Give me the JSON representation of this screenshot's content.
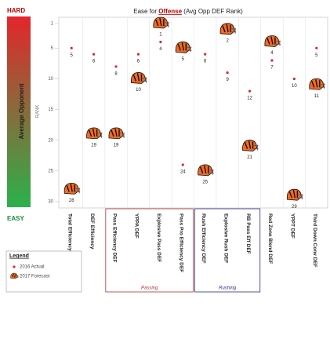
{
  "chart_data": {
    "type": "scatter",
    "title_prefix": "Ease for ",
    "title_emphasis": "Offense",
    "title_suffix": " (Avg Opp DEF Rank)",
    "top_label": "HARD",
    "bottom_label": "EASY",
    "y_label": "Average Opponent",
    "y_sublabel": "RANK",
    "categories": [
      "Total Efficiency",
      "DEF Efficiency",
      "Pass Efficiency DEF",
      "YPPA DEF",
      "Explosive Pass DEF",
      "Pass Pro Efficiency DEF",
      "Rush Efficiency DEF",
      "Explosive Rush DEF",
      "RB Pass Eff DEF",
      "Red Zone Blend DEF",
      "YPPT DEF",
      "Third Down Conv DEF"
    ],
    "groups": [
      {
        "name": "Passing",
        "start": 2,
        "end": 5
      },
      {
        "name": "Rushing",
        "start": 6,
        "end": 8
      }
    ],
    "series": [
      {
        "name": "2016 Actual",
        "color": "#e0262b",
        "marker": "dot",
        "values": [
          5,
          6,
          8,
          6,
          4,
          24,
          6,
          9,
          12,
          7,
          10,
          5
        ]
      },
      {
        "name": "2017 Forecast",
        "color": "#f26b21",
        "marker": "helmet",
        "values": [
          28,
          19,
          19,
          10,
          1,
          5,
          25,
          2,
          21,
          4,
          29,
          11
        ]
      }
    ],
    "ylim": [
      1,
      30
    ],
    "yticks": [
      1,
      5,
      10,
      15,
      20,
      25,
      30
    ],
    "y_inverted": true,
    "legend_title": "Legend",
    "legend": "bottom-left"
  }
}
